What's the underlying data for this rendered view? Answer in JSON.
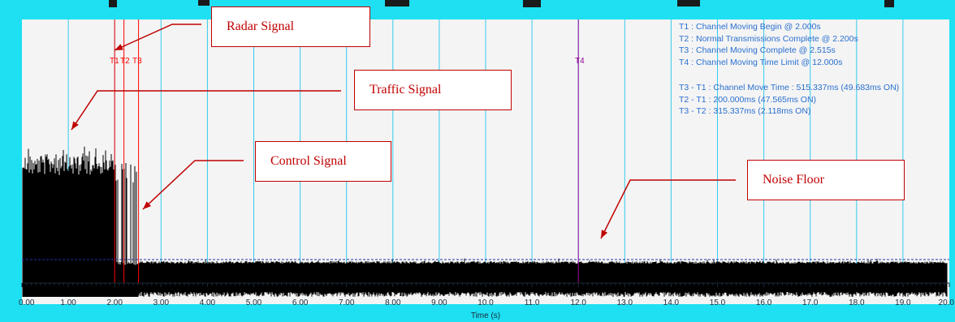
{
  "chart_data": {
    "type": "line",
    "title": "",
    "xlabel": "Time (s)",
    "ylabel": "",
    "xlim": [
      0,
      20
    ],
    "x_ticks": [
      "0.00",
      "1.00",
      "2.00",
      "3.00",
      "4.00",
      "5.00",
      "6.00",
      "7.00",
      "8.00",
      "9.00",
      "10.0",
      "11.0",
      "12.0",
      "13.0",
      "14.0",
      "15.0",
      "16.0",
      "17.0",
      "18.0",
      "19.0",
      "20.0"
    ],
    "grid": true,
    "markers": [
      {
        "label": "T1",
        "time": 2.0,
        "color": "#ff0000"
      },
      {
        "label": "T2",
        "time": 2.2,
        "color": "#ff0000"
      },
      {
        "label": "T3",
        "time": 2.515,
        "color": "#ff0000"
      },
      {
        "label": "T4",
        "time": 12.0,
        "color": "#990099"
      }
    ],
    "annotations": [
      "T1 : Channel Moving Begin @ 2.000s",
      "T2 : Normal Transmissions Complete @ 2.200s",
      "T3 : Channel Moving Complete @ 2.515s",
      "T4 : Channel Moving Time Limit @ 12.000s",
      "T3 - T1 : Channel Move Time : 515.337ms (49.683ms ON)",
      "T2 - T1 : 200.000ms (47.565ms ON)",
      "T3 - T2 : 315.337ms (2.118ms ON)"
    ],
    "callouts": [
      {
        "label": "Radar Signal"
      },
      {
        "label": "Traffic Signal"
      },
      {
        "label": "Control Signal"
      },
      {
        "label": "Noise Floor"
      }
    ]
  },
  "colors": {
    "frame": "#1ee0f2",
    "plot_bg": "#f4f4f4",
    "gridline": "#33ccee",
    "signal": "#000000",
    "noise_threshold": "#2233aa",
    "annotation_text": "#2a6fd0",
    "callout": "#c00000"
  }
}
